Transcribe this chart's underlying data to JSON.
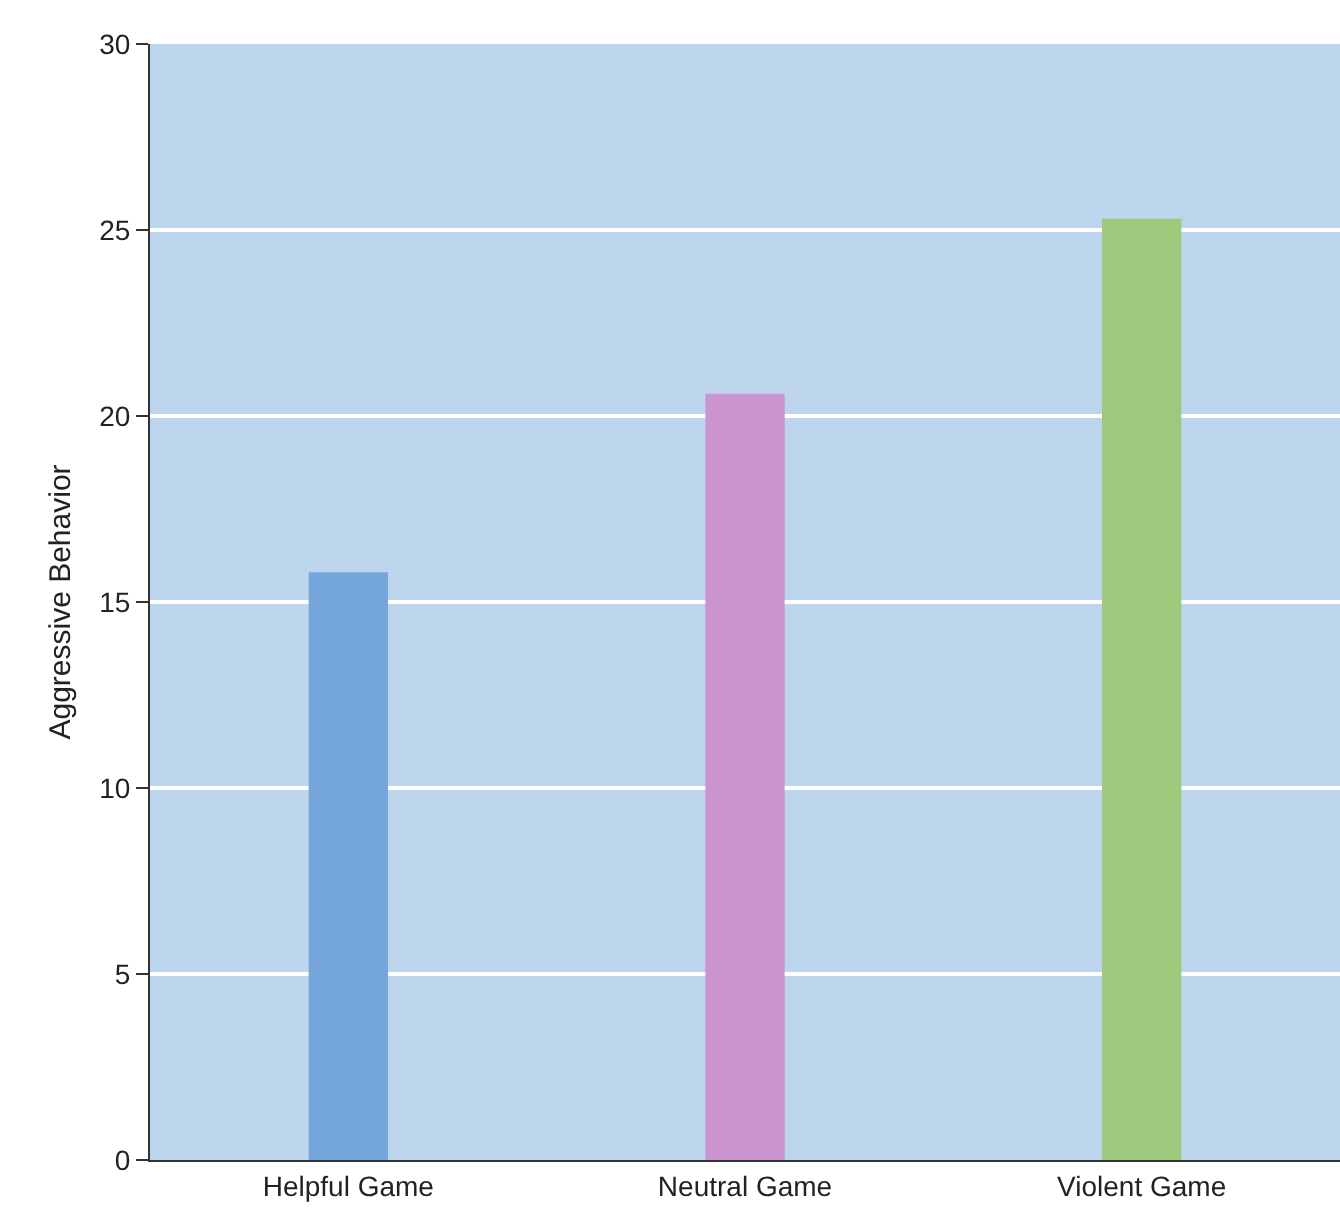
{
  "chart_data": {
    "type": "bar",
    "ylabel": "Aggressive Behavior",
    "categories": [
      "Helpful Game",
      "Neutral Game",
      "Violent Game"
    ],
    "colors": [
      "#74a6dc",
      "#c994cf",
      "#9cc97c"
    ],
    "values": [
      15.8,
      20.6,
      25.3
    ],
    "ylim": [
      0,
      30
    ],
    "yticks": [
      0,
      5,
      10,
      15,
      20,
      25,
      30
    ],
    "grid": "y"
  }
}
